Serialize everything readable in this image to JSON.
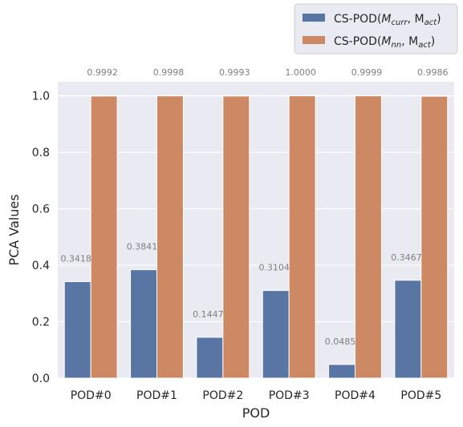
{
  "chart_data": {
    "type": "bar",
    "title": "",
    "xlabel": "POD",
    "ylabel": "PCA Values",
    "categories": [
      "POD#0",
      "POD#1",
      "POD#2",
      "POD#3",
      "POD#4",
      "POD#5"
    ],
    "series": [
      {
        "name": "CS-POD(M_curr, M_act)",
        "color": "#5975a4",
        "values": [
          0.3418,
          0.3841,
          0.1447,
          0.3104,
          0.0485,
          0.3467
        ],
        "labels": [
          "0.3418",
          "0.3841",
          "0.1447",
          "0.3104",
          "0.0485",
          "0.3467"
        ]
      },
      {
        "name": "CS-POD(M_nn, M_act)",
        "color": "#cc8963",
        "values": [
          0.9992,
          0.9998,
          0.9993,
          1.0,
          0.9999,
          0.9986
        ],
        "labels": [
          "0.9992",
          "0.9998",
          "0.9993",
          "1.0000",
          "0.9999",
          "0.9986"
        ]
      }
    ],
    "ylim": [
      0,
      1.05
    ],
    "yticks": [
      0.0,
      0.2,
      0.4,
      0.6,
      0.8,
      1.0
    ],
    "ytick_labels": [
      "0.0",
      "0.2",
      "0.4",
      "0.6",
      "0.8",
      "1.0"
    ],
    "grid": true,
    "legend_position": "top-right (outside plot area)",
    "plot_background": "#eaeaf2"
  },
  "legend": {
    "entry0": {
      "main": "CS-POD(",
      "m": "M",
      "sub": "curr",
      "sep": ", M",
      "sub2": "act",
      "close": ")"
    },
    "entry1": {
      "main": "CS-POD(",
      "m": "M",
      "sub": "nn",
      "sep": ", M",
      "sub2": "act",
      "close": ")"
    }
  }
}
